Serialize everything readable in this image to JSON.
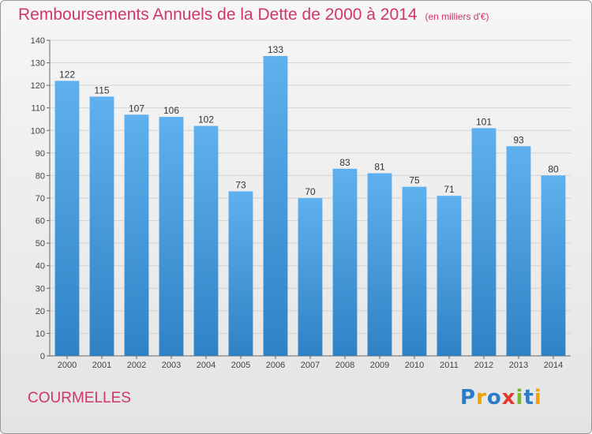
{
  "title": "Remboursements Annuels de la Dette de 2000 à 2014",
  "unit": "(en milliers d'€)",
  "city": "COURMELLES",
  "brand": [
    "P",
    "r",
    "o",
    "x",
    "i",
    "t",
    "i"
  ],
  "colors": {
    "bar_top": "#5fb0ee",
    "bar_bottom": "#2f82c4",
    "title": "#d0356e"
  },
  "chart_data": {
    "type": "bar",
    "categories": [
      "2000",
      "2001",
      "2002",
      "2003",
      "2004",
      "2005",
      "2006",
      "2007",
      "2008",
      "2009",
      "2010",
      "2011",
      "2012",
      "2013",
      "2014"
    ],
    "values": [
      122,
      115,
      107,
      106,
      102,
      73,
      133,
      70,
      83,
      81,
      75,
      71,
      101,
      93,
      80
    ],
    "ylim": [
      0,
      140
    ],
    "yticks": [
      0,
      10,
      20,
      30,
      40,
      50,
      60,
      70,
      80,
      90,
      100,
      110,
      120,
      130,
      140
    ],
    "grid": true
  }
}
